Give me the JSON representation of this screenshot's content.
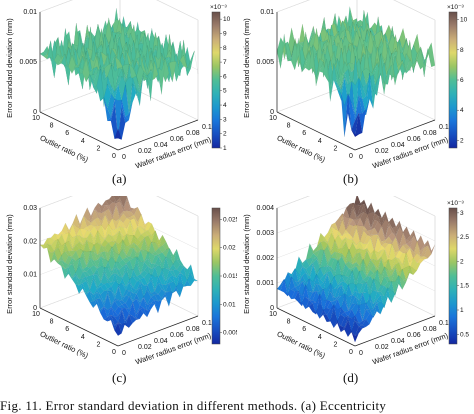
{
  "chart_data": [
    {
      "type": "surface",
      "panel_label": "(a)",
      "zlabel": "Error standard deviation (mm)",
      "xlabel": "Outlier ratio (%)",
      "ylabel": "Wafer radius error (mm)",
      "x_ticks": [
        "0",
        "2",
        "4",
        "6",
        "8",
        "10"
      ],
      "y_ticks": [
        "0",
        "0.02",
        "0.04",
        "0.06",
        "0.08",
        "0.1"
      ],
      "z_ticks": [
        "0",
        "0.005",
        "0.01"
      ],
      "zlim": [
        0,
        0.01
      ],
      "colorbar": {
        "ticks": [
          "1",
          "2",
          "3",
          "4",
          "5",
          "6",
          "7",
          "8",
          "9",
          "10"
        ],
        "exponent": "×10⁻³",
        "range": [
          0.001,
          0.0105
        ]
      },
      "surface": {
        "base": 0.0058,
        "slope_outlier": 0.0,
        "slope_radius": 0.0,
        "roughness": 0.0024,
        "dip_at_origin": 0.0045
      }
    },
    {
      "type": "surface",
      "panel_label": "(b)",
      "zlabel": "Error standard deviation (mm)",
      "xlabel": "Outlier ratio (%)",
      "ylabel": "Wafer radius error (mm)",
      "x_ticks": [
        "0",
        "2",
        "4",
        "6",
        "8",
        "10"
      ],
      "y_ticks": [
        "0",
        "0.02",
        "0.04",
        "0.06",
        "0.08",
        "0.1"
      ],
      "z_ticks": [
        "0",
        "0.005",
        "0.01"
      ],
      "zlim": [
        0,
        0.01
      ],
      "colorbar": {
        "ticks": [
          "2",
          "4",
          "6",
          "8",
          "10"
        ],
        "exponent": "×10⁻³",
        "range": [
          0.0015,
          0.0105
        ]
      },
      "surface": {
        "base": 0.0062,
        "slope_outlier": 0.0,
        "slope_radius": 0.0,
        "roughness": 0.0024,
        "dip_at_origin": 0.005
      }
    },
    {
      "type": "surface",
      "panel_label": "(c)",
      "zlabel": "Error standard deviation (mm)",
      "xlabel": "Outlier ratio (%)",
      "ylabel": "Wafer radius error (mm)",
      "x_ticks": [
        "0",
        "2",
        "4",
        "6",
        "8",
        "10"
      ],
      "y_ticks": [
        "0",
        "0.02",
        "0.04",
        "0.06",
        "0.08",
        "0.1"
      ],
      "z_ticks": [
        "0",
        "0.01",
        "0.02",
        "0.03"
      ],
      "zlim": [
        0,
        0.03
      ],
      "colorbar": {
        "ticks": [
          "0.005",
          "0.01",
          "0.015",
          "0.02",
          "0.025"
        ],
        "exponent": "",
        "range": [
          0.003,
          0.027
        ]
      },
      "surface": {
        "base": 0.004,
        "slope_outlier": 0.0015,
        "slope_radius": 0.07,
        "roughness": 0.0025,
        "dip_at_origin": 0.0
      }
    },
    {
      "type": "surface",
      "panel_label": "(d)",
      "zlabel": "Error standard deviation (mm)",
      "xlabel": "Outlier ratio (%)",
      "ylabel": "Wafer radius error (mm)",
      "x_ticks": [
        "0",
        "2",
        "4",
        "6",
        "8",
        "10"
      ],
      "y_ticks": [
        "0",
        "0.02",
        "0.04",
        "0.06",
        "0.08",
        "0.1"
      ],
      "z_ticks": [
        "0",
        "0.001",
        "0.002",
        "0.003",
        "0.004"
      ],
      "zlim": [
        0,
        0.004
      ],
      "colorbar": {
        "ticks": [
          "0.5",
          "1",
          "1.5",
          "2",
          "2.5",
          "3"
        ],
        "exponent": "×10⁻³",
        "range": [
          0.0003,
          0.0031
        ]
      },
      "surface": {
        "base": 0.0003,
        "slope_outlier": 5e-05,
        "slope_radius": 0.024,
        "roughness": 0.0004,
        "dip_at_origin": 0.0
      }
    }
  ],
  "caption": "Fig. 11.   Error standard deviation in different methods. (a) Eccentricity"
}
